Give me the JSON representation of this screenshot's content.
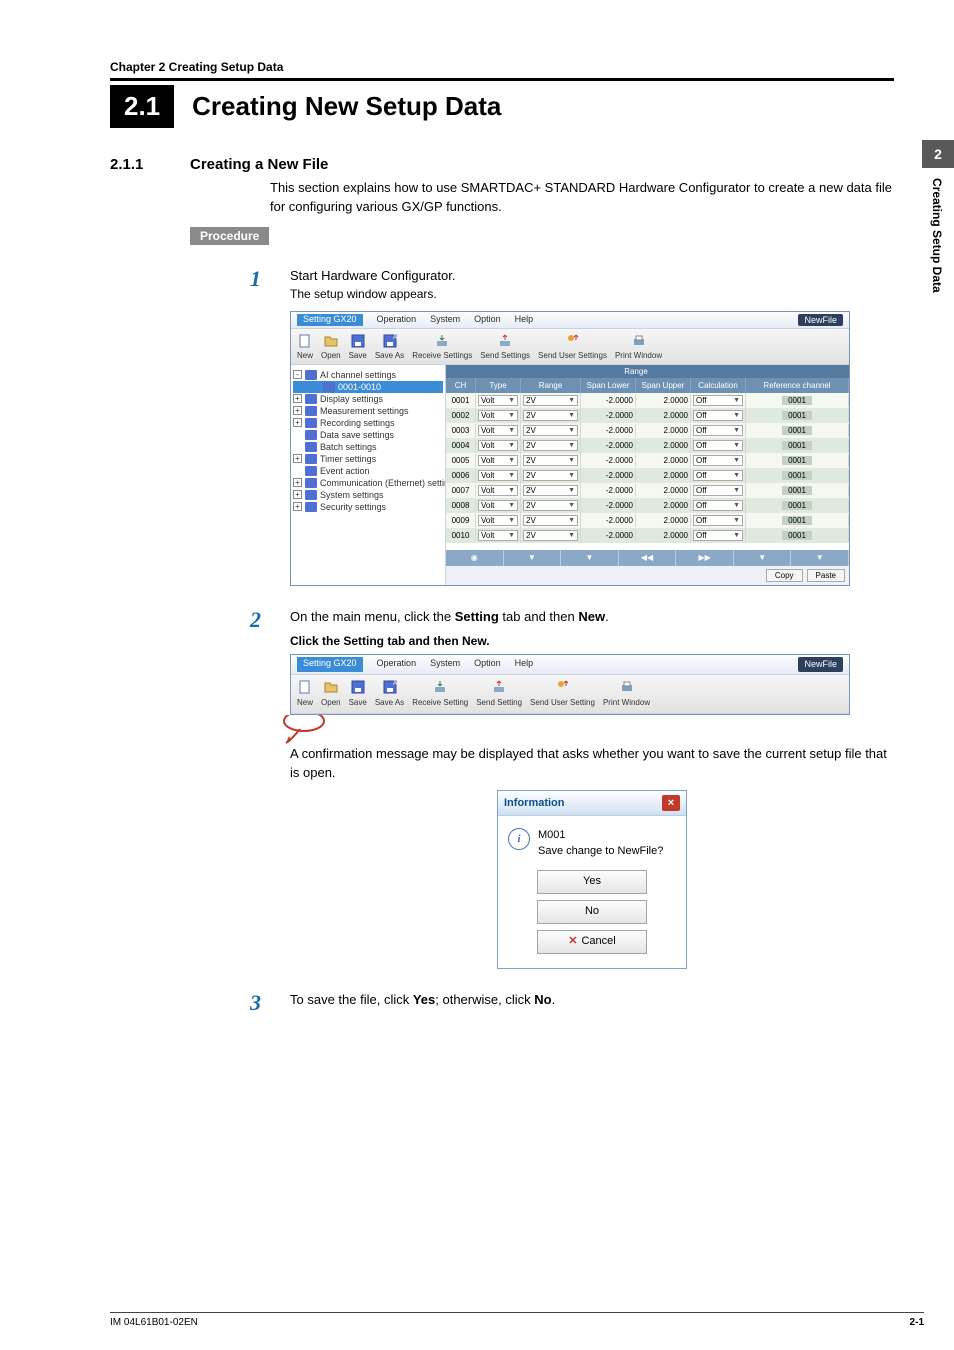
{
  "chapter_header": "Chapter 2  Creating Setup Data",
  "side_tab_num": "2",
  "side_tab_text": "Creating Setup Data",
  "h1_num": "2.1",
  "h1_text": "Creating New Setup Data",
  "h2_num": "2.1.1",
  "h2_text": "Creating a New File",
  "intro": "This section explains how to use SMARTDAC+ STANDARD Hardware Configurator to create a new data file for configuring various GX/GP functions.",
  "procedure_label": "Procedure",
  "steps": {
    "s1": {
      "num": "1",
      "line1": "Start Hardware Configurator.",
      "line2": "The setup window appears."
    },
    "s2": {
      "num": "2",
      "line1_a": "On the main menu, click the ",
      "line1_b": "Setting",
      "line1_c": " tab and then ",
      "line1_d": "New",
      "line1_e": ".",
      "caption": "Click the Setting tab and then New.",
      "line2": "A confirmation message may be displayed that asks whether you want to save the current setup file that is open."
    },
    "s3": {
      "num": "3",
      "line1_a": "To save the file, click ",
      "line1_b": "Yes",
      "line1_c": "; otherwise, click ",
      "line1_d": "No",
      "line1_e": "."
    }
  },
  "win1": {
    "menus": [
      "Setting GX20",
      "Operation",
      "System",
      "Option",
      "Help"
    ],
    "newfile_badge": "NewFile",
    "toolbar": [
      "New",
      "Open",
      "Save",
      "Save As",
      "Receive Settings",
      "Send Settings",
      "Send User Settings",
      "Print Window"
    ],
    "tree": [
      {
        "label": "AI channel settings",
        "exp": "-"
      },
      {
        "label": "0001-0010",
        "sel": true,
        "indent": true
      },
      {
        "label": "Display settings",
        "exp": "+"
      },
      {
        "label": "Measurement settings",
        "exp": "+"
      },
      {
        "label": "Recording settings",
        "exp": "+"
      },
      {
        "label": "Data save settings"
      },
      {
        "label": "Batch settings"
      },
      {
        "label": "Timer settings",
        "exp": "+"
      },
      {
        "label": "Event action"
      },
      {
        "label": "Communication (Ethernet) settings",
        "exp": "+"
      },
      {
        "label": "System settings",
        "exp": "+"
      },
      {
        "label": "Security settings",
        "exp": "+"
      }
    ],
    "header_top_range": "Range",
    "cols": [
      "CH",
      "Type",
      "Range",
      "Span Lower",
      "Span Upper",
      "Calculation",
      "Reference channel"
    ],
    "rows": [
      {
        "ch": "0001",
        "type": "Volt",
        "range": "2V",
        "sl": "-2.0000",
        "su": "2.0000",
        "cal": "Off",
        "ref": "0001"
      },
      {
        "ch": "0002",
        "type": "Volt",
        "range": "2V",
        "sl": "-2.0000",
        "su": "2.0000",
        "cal": "Off",
        "ref": "0001"
      },
      {
        "ch": "0003",
        "type": "Volt",
        "range": "2V",
        "sl": "-2.0000",
        "su": "2.0000",
        "cal": "Off",
        "ref": "0001"
      },
      {
        "ch": "0004",
        "type": "Volt",
        "range": "2V",
        "sl": "-2.0000",
        "su": "2.0000",
        "cal": "Off",
        "ref": "0001"
      },
      {
        "ch": "0005",
        "type": "Volt",
        "range": "2V",
        "sl": "-2.0000",
        "su": "2.0000",
        "cal": "Off",
        "ref": "0001"
      },
      {
        "ch": "0006",
        "type": "Volt",
        "range": "2V",
        "sl": "-2.0000",
        "su": "2.0000",
        "cal": "Off",
        "ref": "0001"
      },
      {
        "ch": "0007",
        "type": "Volt",
        "range": "2V",
        "sl": "-2.0000",
        "su": "2.0000",
        "cal": "Off",
        "ref": "0001"
      },
      {
        "ch": "0008",
        "type": "Volt",
        "range": "2V",
        "sl": "-2.0000",
        "su": "2.0000",
        "cal": "Off",
        "ref": "0001"
      },
      {
        "ch": "0009",
        "type": "Volt",
        "range": "2V",
        "sl": "-2.0000",
        "su": "2.0000",
        "cal": "Off",
        "ref": "0001"
      },
      {
        "ch": "0010",
        "type": "Volt",
        "range": "2V",
        "sl": "-2.0000",
        "su": "2.0000",
        "cal": "Off",
        "ref": "0001"
      }
    ],
    "copy_btn": "Copy",
    "paste_btn": "Paste",
    "footer_glyphs": [
      "◉",
      "▼",
      "▼",
      "◀◀",
      "▶▶",
      "▼",
      "▼"
    ]
  },
  "win2": {
    "menus": [
      "Setting GX20",
      "Operation",
      "System",
      "Option",
      "Help"
    ],
    "toolbar": [
      "New",
      "Open",
      "Save",
      "Save As",
      "Receive Setting",
      "Send Setting",
      "Send User Setting",
      "Print Window"
    ],
    "newfile_badge": "NewFile"
  },
  "dialog": {
    "title": "Information",
    "msg_code": "M001",
    "msg_text": "Save change to NewFile?",
    "yes": "Yes",
    "no": "No",
    "cancel": "Cancel"
  },
  "footer_left": "IM 04L61B01-02EN",
  "footer_right": "2-1",
  "colors": {
    "accent": "#1a6aa8",
    "menubar_active": "#3b8cd6",
    "grid_header": "#557aa0",
    "grid_sub": "#6e90b3",
    "row_even": "#dfe9dd",
    "row_odd": "#f4f8f1",
    "side_tab": "#595959"
  }
}
